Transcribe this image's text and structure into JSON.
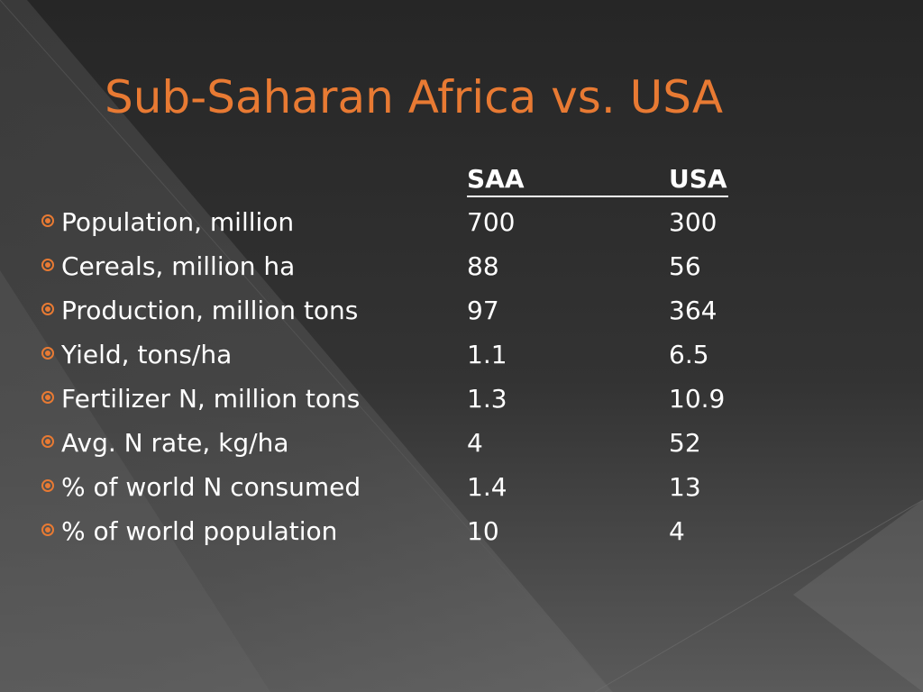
{
  "slide": {
    "title": "Sub-Saharan Africa vs. USA",
    "accent_color": "#e87a33",
    "bullet_icon": "circled-dot-bullet-icon"
  },
  "table": {
    "headers": {
      "saa": "SAA",
      "usa": "USA"
    },
    "rows": [
      {
        "label": "Population, million",
        "saa": "700",
        "usa": "300"
      },
      {
        "label": "Cereals, million ha",
        "saa": "88",
        "usa": "56"
      },
      {
        "label": "Production, million tons",
        "saa": "97",
        "usa": "364"
      },
      {
        "label": "Yield, tons/ha",
        "saa": "1.1",
        "usa": "6.5"
      },
      {
        "label": "Fertilizer N, million tons",
        "saa": "1.3",
        "usa": "10.9"
      },
      {
        "label": "Avg. N rate, kg/ha",
        "saa": "4",
        "usa": "52"
      },
      {
        "label": "% of world N consumed",
        "saa": "1.4",
        "usa": "13"
      },
      {
        "label": "% of world population",
        "saa": "10",
        "usa": "4"
      }
    ]
  }
}
